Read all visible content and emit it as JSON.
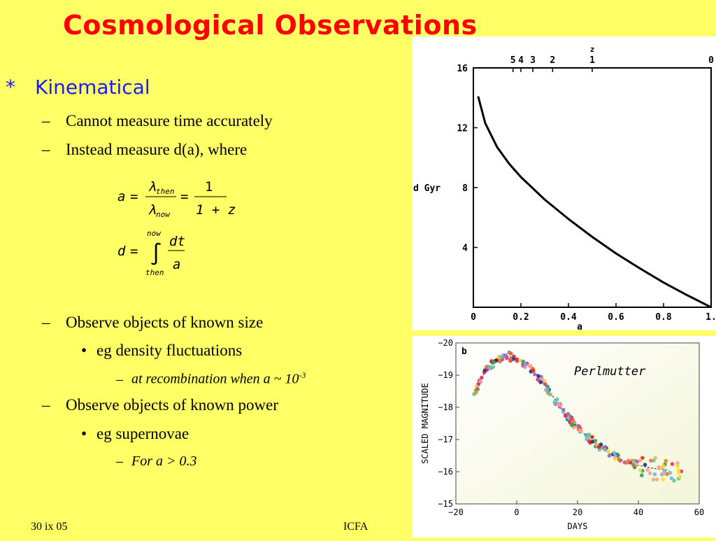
{
  "title": "Cosmological Observations",
  "bullets": {
    "star": "*",
    "kinematical": "Kinematical",
    "dash": "–",
    "dot": "•",
    "cannot_measure": "Cannot measure time accurately",
    "instead_measure": "Instead measure d(a), where",
    "observe_size": "Observe objects of known size",
    "density": "eg density fluctuations",
    "recombination": "at recombination when a ~ 10",
    "recombination_exp": "-3",
    "observe_power": "Observe objects of known power",
    "supernovae": "eg supernovae",
    "for_a": "For a > 0.3"
  },
  "equations": {
    "eq1_a": "a",
    "eq1_equals": "=",
    "lambda": "λ",
    "then": "then",
    "now": "now",
    "one": "1",
    "one_plus_z": "1 + z",
    "eq2_d": "d",
    "integral": "∫",
    "dt": "dt",
    "a": "a"
  },
  "footer": {
    "date": "30 ix 05",
    "venue": "ICFA"
  },
  "chart_data": [
    {
      "type": "line",
      "title": "",
      "xlabel": "a",
      "ylabel": "d Gyr",
      "top_axis_label": "z",
      "x_ticks": [
        "0",
        "0.2",
        "0.4",
        "0.6",
        "0.8",
        "1."
      ],
      "y_ticks": [
        "4",
        "8",
        "12",
        "16"
      ],
      "top_ticks": [
        "5",
        "4",
        "3",
        "2",
        "1",
        "0"
      ],
      "xlim": [
        0,
        1
      ],
      "ylim": [
        0,
        16
      ],
      "series": [
        {
          "x": [
            0.02,
            0.05,
            0.1,
            0.15,
            0.2,
            0.3,
            0.4,
            0.5,
            0.6,
            0.7,
            0.8,
            0.9,
            1.0
          ],
          "y": [
            14.1,
            12.3,
            10.7,
            9.6,
            8.7,
            7.2,
            5.9,
            4.7,
            3.6,
            2.6,
            1.65,
            0.8,
            0.0
          ]
        }
      ],
      "line_color": "#000000"
    },
    {
      "type": "scatter",
      "panel_label": "b",
      "annotation": "Perlmutter",
      "xlabel": "DAYS",
      "ylabel": "SCALED MAGNITUDE",
      "x_ticks": [
        "−20",
        "0",
        "20",
        "40",
        "60"
      ],
      "y_ticks": [
        "−20",
        "−19",
        "−18",
        "−17",
        "−16",
        "−15"
      ],
      "xlim": [
        -20,
        60
      ],
      "ylim": [
        -15,
        -20
      ],
      "template": {
        "x": [
          -14,
          -10,
          -6,
          -3,
          0,
          5,
          10,
          15,
          20,
          25,
          30,
          35,
          40,
          45,
          50
        ],
        "y": [
          -18.4,
          -19.2,
          -19.5,
          -19.6,
          -19.5,
          -19.2,
          -18.6,
          -17.9,
          -17.35,
          -16.95,
          -16.6,
          -16.35,
          -16.2,
          -16.1,
          -16.05
        ]
      },
      "point_colors": [
        "#e8743b",
        "#f4a582",
        "#6bb5e5",
        "#2ca25f",
        "#d62728",
        "#9467bd",
        "#ffd92f",
        "#e7298a",
        "#1b3a8a",
        "#ff7f0e",
        "#fb9a99",
        "#66c2a5"
      ]
    }
  ]
}
